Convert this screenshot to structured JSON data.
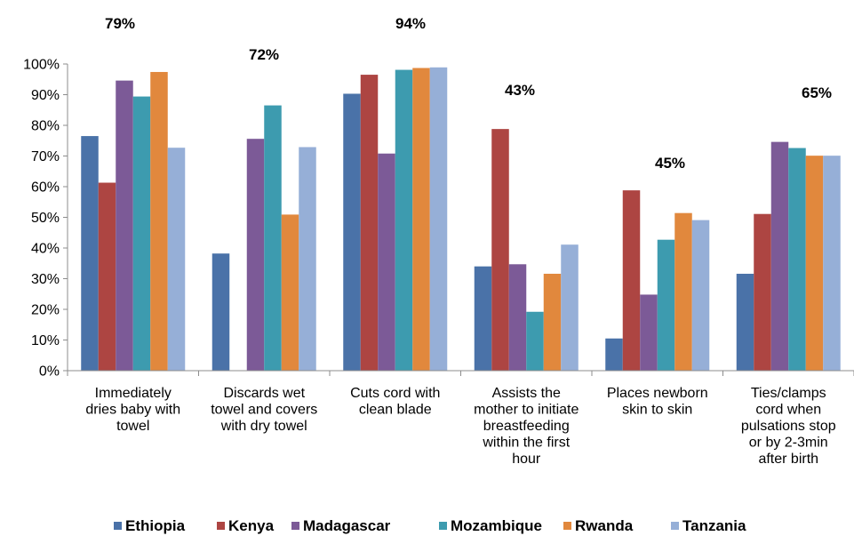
{
  "chart_data": {
    "type": "bar",
    "categories": [
      [
        "Immediately",
        "dries baby with",
        "towel"
      ],
      [
        "Discards wet",
        "towel and covers",
        "with dry towel"
      ],
      [
        "Cuts cord with",
        "clean blade"
      ],
      [
        "Assists the",
        "mother to initiate",
        "breastfeeding",
        "within the first",
        "hour"
      ],
      [
        "Places newborn",
        "skin to skin"
      ],
      [
        "Ties/clamps",
        "cord when",
        "pulsations stop",
        "or by 2-3min",
        "after birth"
      ]
    ],
    "category_totals": [
      "79%",
      "72%",
      "94%",
      "43%",
      "45%",
      "65%"
    ],
    "series": [
      {
        "name": "Ethiopia",
        "color": "#4A72A8",
        "values": [
          76.5,
          38.2,
          90.3,
          34.0,
          10.5,
          31.6
        ]
      },
      {
        "name": "Kenya",
        "color": "#AD4542",
        "values": [
          61.3,
          0,
          96.5,
          78.8,
          58.8,
          51.1
        ]
      },
      {
        "name": "Madagascar",
        "color": "#7C5A97",
        "values": [
          94.6,
          75.6,
          70.8,
          34.7,
          24.8,
          74.6
        ]
      },
      {
        "name": "Mozambique",
        "color": "#3D9BAF",
        "values": [
          89.4,
          86.5,
          98.1,
          19.2,
          42.7,
          72.6
        ]
      },
      {
        "name": "Rwanda",
        "color": "#E1883D",
        "values": [
          97.4,
          50.9,
          98.7,
          31.6,
          51.4,
          70.1
        ]
      },
      {
        "name": "Tanzania",
        "color": "#96AFD7",
        "values": [
          72.7,
          72.9,
          98.9,
          41.1,
          49.1,
          70.1
        ]
      }
    ],
    "yticks": [
      "0%",
      "10%",
      "20%",
      "30%",
      "40%",
      "50%",
      "60%",
      "70%",
      "80%",
      "90%",
      "100%"
    ],
    "ylim": [
      0,
      100
    ],
    "legend_position": "bottom",
    "grid": false
  }
}
